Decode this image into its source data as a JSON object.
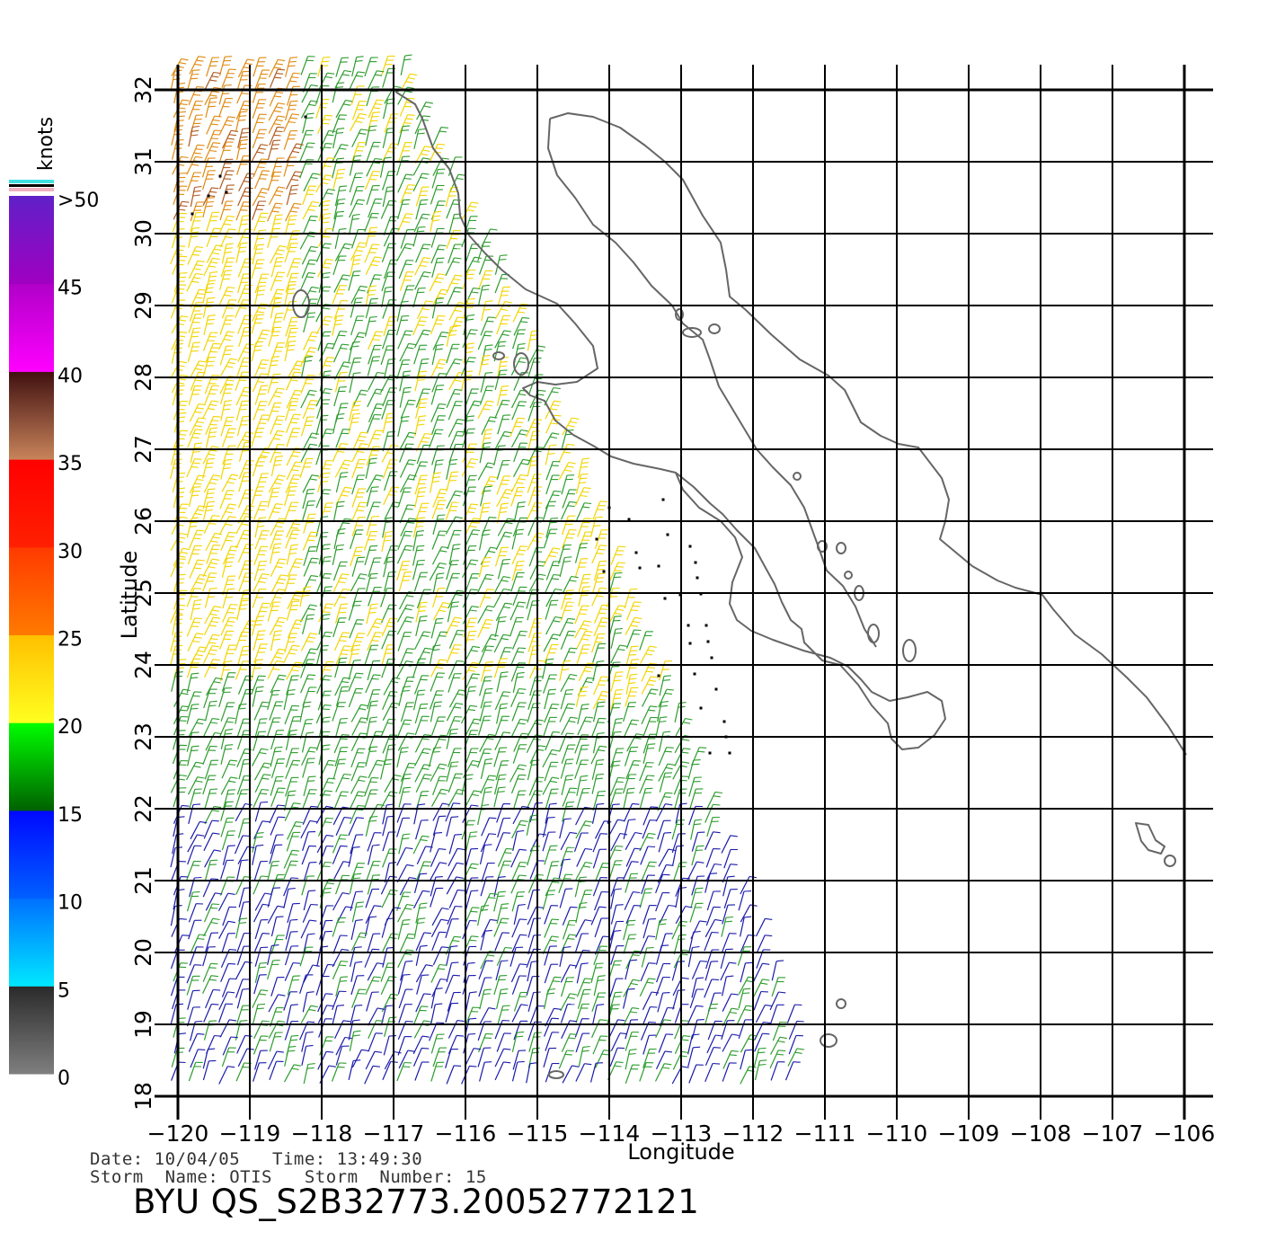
{
  "axes": {
    "xlabel": "Longitude",
    "ylabel": "Latitude",
    "lon_ticks": [
      "−120",
      "−119",
      "−118",
      "−117",
      "−116",
      "−115",
      "−114",
      "−113",
      "−112",
      "−111",
      "−110",
      "−109",
      "−108",
      "−107",
      "−106"
    ],
    "lat_ticks": [
      "32",
      "31",
      "30",
      "29",
      "28",
      "27",
      "26",
      "25",
      "24",
      "23",
      "22",
      "21",
      "20",
      "19",
      "18"
    ],
    "lon_range": [
      -120,
      -106
    ],
    "lat_range": [
      18,
      32
    ]
  },
  "colorbar": {
    "units": "knots",
    "labels": [
      ">50",
      "45",
      "40",
      "35",
      "30",
      "25",
      "20",
      "15",
      "10",
      "5",
      "0"
    ],
    "bands": [
      {
        "min": 0,
        "max": 5,
        "colors": [
          "#7f7f7f",
          "#2a2a2a"
        ]
      },
      {
        "min": 5,
        "max": 10,
        "colors": [
          "#00e8ff",
          "#0070ff"
        ]
      },
      {
        "min": 10,
        "max": 15,
        "colors": [
          "#0060ff",
          "#0008ff"
        ]
      },
      {
        "min": 15,
        "max": 20,
        "colors": [
          "#006000",
          "#00ff00"
        ]
      },
      {
        "min": 20,
        "max": 25,
        "colors": [
          "#ffff20",
          "#ffc000"
        ]
      },
      {
        "min": 25,
        "max": 30,
        "colors": [
          "#ff7a00",
          "#ff3a00"
        ]
      },
      {
        "min": 30,
        "max": 35,
        "colors": [
          "#ff2000",
          "#ff0000"
        ]
      },
      {
        "min": 35,
        "max": 40,
        "colors": [
          "#c8845a",
          "#401010"
        ]
      },
      {
        "min": 40,
        "max": 45,
        "colors": [
          "#ff00ff",
          "#b000c8"
        ]
      },
      {
        "min": 45,
        "max": 50,
        "colors": [
          "#a000c0",
          "#6020c8"
        ]
      }
    ]
  },
  "wind_colors": {
    "calm": "#000000",
    "light": "#1a1aaa",
    "moderate": "#2c9c2c",
    "fresh": "#f2d400",
    "strong": "#e08a10",
    "gale": "#b05a20",
    "storm": "#d02020"
  },
  "coastline_color": "#666666",
  "info": {
    "date_label": "Date:",
    "date": "10/04/05",
    "time_label": "Time:",
    "time": "13:49:30",
    "storm_name_label": "Storm  Name:",
    "storm_name": "OTIS",
    "storm_number_label": "Storm  Number:",
    "storm_number": "15"
  },
  "title": "BYU  QS_S2B32773.20052772121"
}
